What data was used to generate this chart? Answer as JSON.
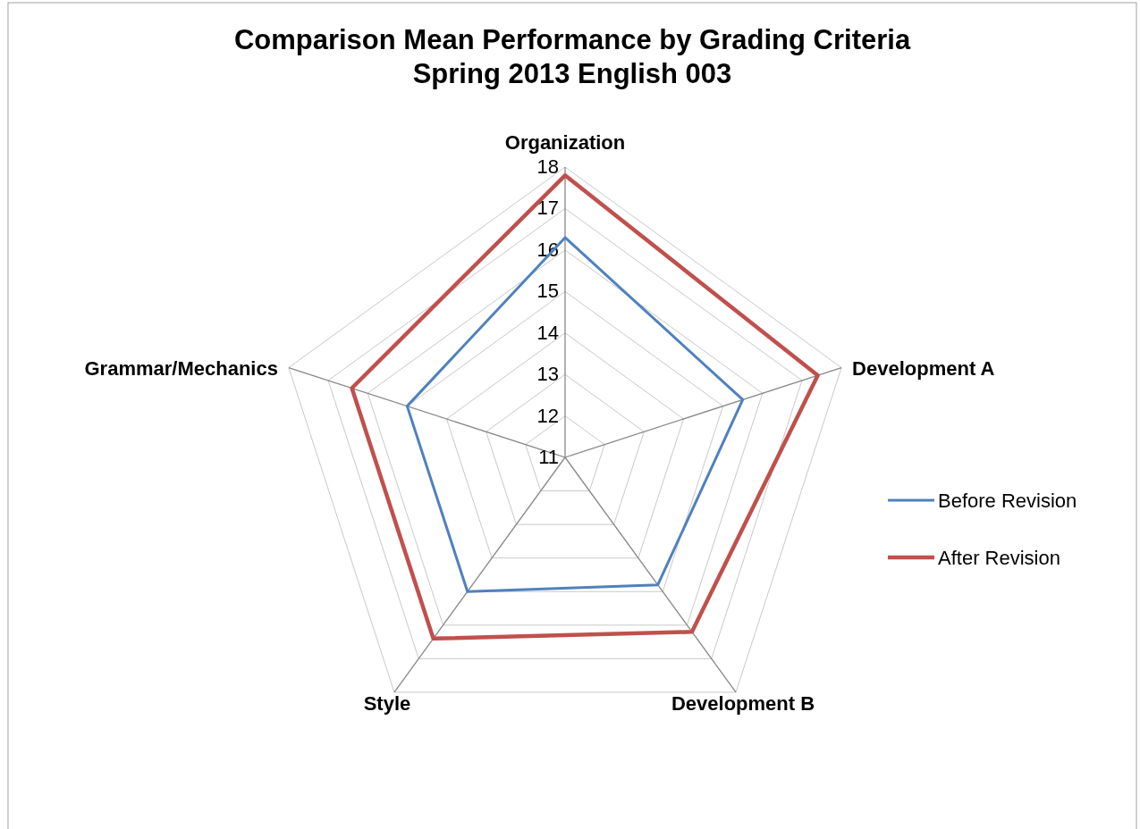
{
  "chart_data": {
    "type": "radar",
    "title": "Comparison Mean Performance by Grading Criteria\nSpring 2013 English 003",
    "categories": [
      "Organization",
      "Development A",
      "Development B",
      "Style",
      "Grammar/Mechanics"
    ],
    "series": [
      {
        "name": "Before Revision",
        "color": "#4f81bd",
        "values": [
          16.3,
          15.5,
          14.8,
          15.0,
          15.0
        ]
      },
      {
        "name": "After Revision",
        "color": "#c0504d",
        "values": [
          17.8,
          17.4,
          16.2,
          16.4,
          16.4
        ]
      }
    ],
    "ylim": [
      11,
      18
    ],
    "yticks": [
      11,
      12,
      13,
      14,
      15,
      16,
      17,
      18
    ],
    "grid": true,
    "legend": "right"
  }
}
